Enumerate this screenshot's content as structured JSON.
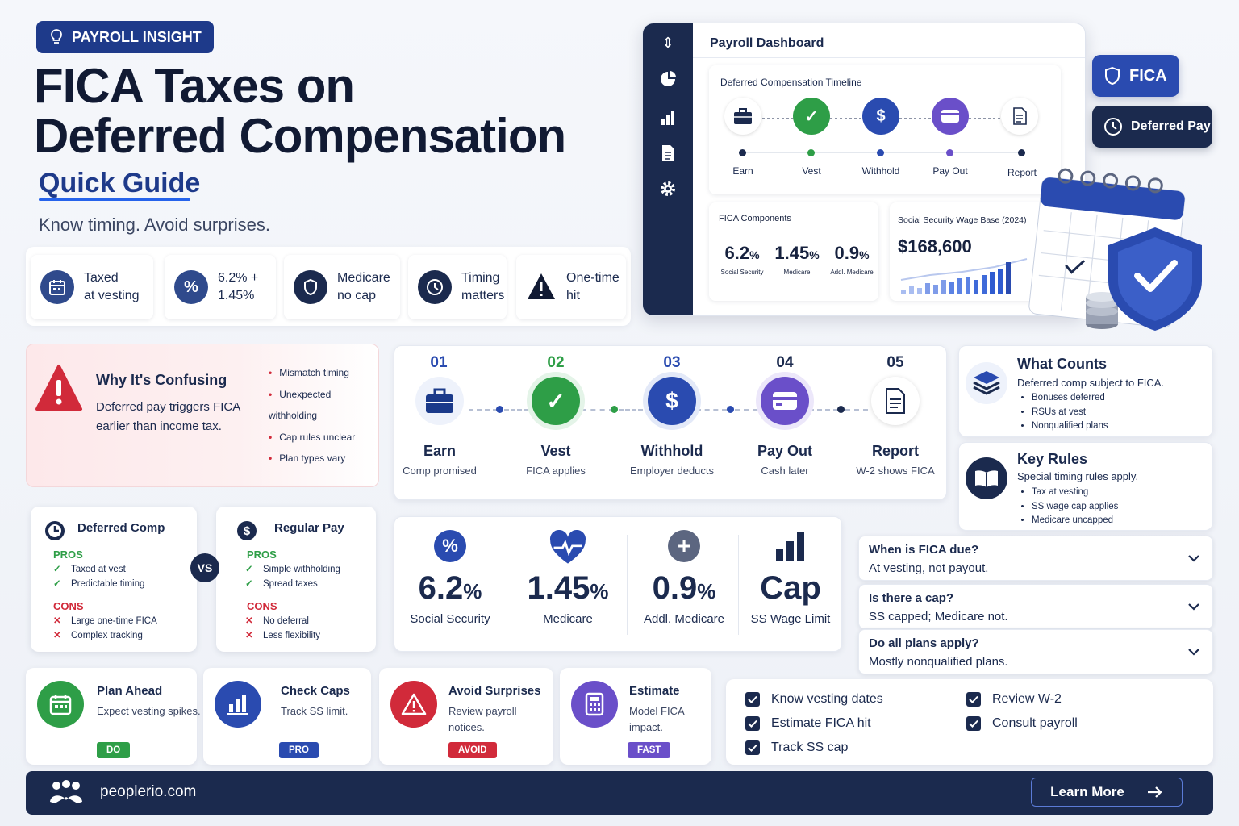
{
  "header": {
    "badge": "PAYROLL INSIGHT",
    "title_line1": "FICA Taxes on",
    "title_line2": "Deferred Compensation",
    "subtitle": "Quick Guide",
    "tagline": "Know timing. Avoid surprises."
  },
  "features": [
    {
      "line1": "Taxed",
      "line2": "at vesting",
      "icon": "calendar-icon"
    },
    {
      "line1": "6.2% +",
      "line2": "1.45%",
      "icon": "percent-icon"
    },
    {
      "line1": "Medicare",
      "line2": "no cap",
      "icon": "shield-icon"
    },
    {
      "line1": "Timing",
      "line2": "matters",
      "icon": "clock-icon"
    },
    {
      "line1": "One-time",
      "line2": "hit",
      "icon": "warning-icon"
    }
  ],
  "dashboard": {
    "title": "Payroll Dashboard",
    "timeline_title": "Deferred Compensation Timeline",
    "timeline": [
      "Earn",
      "Vest",
      "Withhold",
      "Pay Out",
      "Report"
    ],
    "fica_title": "FICA Components",
    "fica": [
      {
        "value": "6.2",
        "unit": "%",
        "label": "Social Security"
      },
      {
        "value": "1.45",
        "unit": "%",
        "label": "Medicare"
      },
      {
        "value": "0.9",
        "unit": "%",
        "label": "Addl. Medicare"
      }
    ],
    "wage_title": "Social Security Wage Base (2024)",
    "wage_value": "$168,600"
  },
  "pills": {
    "fica": "FICA",
    "deferred": "Deferred Pay"
  },
  "why": {
    "title": "Why It's Confusing",
    "text_line1": "Deferred pay triggers FICA",
    "text_line2": "earlier than income tax.",
    "bullets": [
      "Mismatch timing",
      "Unexpected withholding",
      "Cap rules unclear",
      "Plan types vary"
    ]
  },
  "steps": [
    {
      "num": "01",
      "title": "Earn",
      "desc": "Comp promised"
    },
    {
      "num": "02",
      "title": "Vest",
      "desc": "FICA applies"
    },
    {
      "num": "03",
      "title": "Withhold",
      "desc": "Employer deducts"
    },
    {
      "num": "04",
      "title": "Pay Out",
      "desc": "Cash later"
    },
    {
      "num": "05",
      "title": "Report",
      "desc": "W-2 shows FICA"
    }
  ],
  "what_counts": {
    "title": "What Counts",
    "desc": "Deferred comp subject to FICA.",
    "bullets": [
      "Bonuses deferred",
      "RSUs at vest",
      "Nonqualified plans"
    ]
  },
  "key_rules": {
    "title": "Key Rules",
    "desc": "Special timing rules apply.",
    "bullets": [
      "Tax at vesting",
      "SS wage cap applies",
      "Medicare uncapped"
    ]
  },
  "compare": {
    "vs": "VS",
    "deferred": {
      "title": "Deferred Comp",
      "pros_label": "PROS",
      "pros": [
        "Taxed at vest",
        "Predictable timing"
      ],
      "cons_label": "CONS",
      "cons": [
        "Large one-time FICA",
        "Complex tracking"
      ]
    },
    "regular": {
      "title": "Regular Pay",
      "pros_label": "PROS",
      "pros": [
        "Simple withholding",
        "Spread taxes"
      ],
      "cons_label": "CONS",
      "cons": [
        "No deferral",
        "Less flexibility"
      ]
    }
  },
  "stats": [
    {
      "value": "6.2",
      "unit": "%",
      "label": "Social Security"
    },
    {
      "value": "1.45",
      "unit": "%",
      "label": "Medicare"
    },
    {
      "value": "0.9",
      "unit": "%",
      "label": "Addl. Medicare"
    },
    {
      "value": "Cap",
      "unit": "",
      "label": "SS Wage Limit"
    }
  ],
  "faq": [
    {
      "q": "When is FICA due?",
      "a": "At vesting, not payout."
    },
    {
      "q": "Is there a cap?",
      "a": "SS capped; Medicare not."
    },
    {
      "q": "Do all plans apply?",
      "a": "Mostly nonqualified plans."
    }
  ],
  "tips": [
    {
      "title": "Plan Ahead",
      "desc": "Expect vesting spikes.",
      "tag": "DO",
      "color": "#2e9e47"
    },
    {
      "title": "Check Caps",
      "desc": "Track SS limit.",
      "tag": "PRO",
      "color": "#2a4bb0"
    },
    {
      "title": "Avoid Surprises",
      "desc": "Review payroll notices.",
      "tag": "AVOID",
      "color": "#d12a3a"
    },
    {
      "title": "Estimate",
      "desc": "Model FICA impact.",
      "tag": "FAST",
      "color": "#6a4fc9"
    }
  ],
  "checklist": [
    "Know vesting dates",
    "Estimate FICA hit",
    "Track SS cap",
    "Review W-2",
    "Consult payroll"
  ],
  "footer": {
    "site": "peoplerio.com",
    "cta": "Learn More"
  }
}
